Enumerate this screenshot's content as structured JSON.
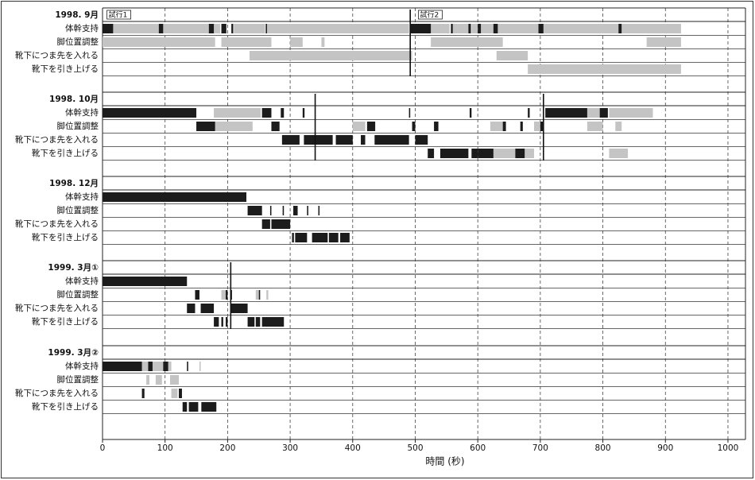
{
  "chart_data": {
    "type": "timeline",
    "xlabel": "時間 (秒)",
    "xlim": [
      0,
      1028
    ],
    "xticks": [
      0,
      100,
      200,
      300,
      400,
      500,
      600,
      700,
      800,
      900,
      1000
    ],
    "grid": true,
    "dark_color": "#1c1c1c",
    "light_color": "#c4c4c4",
    "annotations": [
      {
        "text": "試行1",
        "x": 2
      },
      {
        "text": "試行2",
        "x": 500
      }
    ],
    "panels": [
      {
        "title": "1998. 9月",
        "markers": [
          492
        ],
        "rows": [
          {
            "name": "体幹支持",
            "dark": [
              [
                0,
                17
              ],
              [
                90,
                97
              ],
              [
                170,
                178
              ],
              [
                190,
                198
              ],
              [
                206,
                209
              ],
              [
                261,
                263
              ],
              [
                493,
                525
              ],
              [
                557,
                560
              ],
              [
                585,
                589
              ],
              [
                600,
                605
              ],
              [
                625,
                632
              ],
              [
                697,
                705
              ],
              [
                825,
                830
              ]
            ],
            "light": [
              [
                17,
                90
              ],
              [
                97,
                170
              ],
              [
                178,
                188
              ],
              [
                210,
                260
              ],
              [
                263,
                490
              ],
              [
                525,
                555
              ],
              [
                560,
                585
              ],
              [
                590,
                600
              ],
              [
                605,
                625
              ],
              [
                632,
                697
              ],
              [
                705,
                825
              ],
              [
                830,
                925
              ]
            ]
          },
          {
            "name": "脚位置調整",
            "dark": [],
            "light": [
              [
                0,
                180
              ],
              [
                190,
                270
              ],
              [
                300,
                320
              ],
              [
                350,
                355
              ],
              [
                525,
                640
              ],
              [
                870,
                925
              ]
            ]
          },
          {
            "name": "靴下につま先を入れる",
            "dark": [],
            "light": [
              [
                235,
                495
              ],
              [
                630,
                680
              ]
            ]
          },
          {
            "name": "靴下を引き上げる",
            "dark": [],
            "light": [
              [
                680,
                925
              ]
            ]
          }
        ]
      },
      {
        "title": "1998. 10月",
        "markers": [
          340,
          705
        ],
        "rows": [
          {
            "name": "体幹支持",
            "dark": [
              [
                0,
                150
              ],
              [
                255,
                270
              ],
              [
                285,
                290
              ],
              [
                320,
                323
              ],
              [
                490,
                492
              ],
              [
                587,
                590
              ],
              [
                680,
                683
              ],
              [
                708,
                775
              ],
              [
                795,
                808
              ]
            ],
            "light": [
              [
                178,
                253
              ],
              [
                775,
                795
              ],
              [
                810,
                880
              ]
            ]
          },
          {
            "name": "脚位置調整",
            "dark": [
              [
                150,
                180
              ],
              [
                270,
                283
              ],
              [
                423,
                436
              ],
              [
                495,
                500
              ],
              [
                530,
                537
              ],
              [
                640,
                645
              ],
              [
                668,
                672
              ],
              [
                700,
                705
              ]
            ],
            "light": [
              [
                180,
                240
              ],
              [
                400,
                420
              ],
              [
                620,
                640
              ],
              [
                690,
                700
              ],
              [
                775,
                800
              ],
              [
                820,
                830
              ]
            ]
          },
          {
            "name": "靴下につま先を入れる",
            "dark": [
              [
                287,
                315
              ],
              [
                322,
                368
              ],
              [
                373,
                400
              ],
              [
                413,
                420
              ],
              [
                435,
                490
              ],
              [
                500,
                520
              ]
            ],
            "light": []
          },
          {
            "name": "靴下を引き上げる",
            "dark": [
              [
                520,
                530
              ],
              [
                540,
                585
              ],
              [
                590,
                600
              ],
              [
                600,
                625
              ],
              [
                660,
                675
              ]
            ],
            "light": [
              [
                625,
                660
              ],
              [
                675,
                690
              ],
              [
                810,
                840
              ]
            ]
          }
        ]
      },
      {
        "title": "1998. 12月",
        "markers": [],
        "rows": [
          {
            "name": "体幹支持",
            "dark": [
              [
                0,
                230
              ]
            ],
            "light": []
          },
          {
            "name": "脚位置調整",
            "dark": [
              [
                232,
                255
              ],
              [
                268,
                270
              ],
              [
                288,
                290
              ],
              [
                305,
                312
              ],
              [
                327,
                329
              ],
              [
                345,
                347
              ]
            ],
            "light": []
          },
          {
            "name": "靴下につま先を入れる",
            "dark": [
              [
                255,
                268
              ],
              [
                270,
                300
              ]
            ],
            "light": []
          },
          {
            "name": "靴下を引き上げる",
            "dark": [
              [
                303,
                306
              ],
              [
                308,
                327
              ],
              [
                335,
                360
              ],
              [
                362,
                377
              ],
              [
                380,
                395
              ]
            ],
            "light": []
          }
        ]
      },
      {
        "title": "1999. 3月①",
        "markers": [
          205
        ],
        "rows": [
          {
            "name": "体幹支持",
            "dark": [
              [
                0,
                135
              ]
            ],
            "light": []
          },
          {
            "name": "脚位置調整",
            "dark": [
              [
                148,
                155
              ],
              [
                197,
                200
              ],
              [
                205,
                207
              ],
              [
                250,
                252
              ]
            ],
            "light": [
              [
                190,
                197
              ],
              [
                245,
                250
              ],
              [
                262,
                265
              ]
            ]
          },
          {
            "name": "靴下につま先を入れる",
            "dark": [
              [
                135,
                148
              ],
              [
                157,
                178
              ],
              [
                205,
                232
              ]
            ],
            "light": []
          },
          {
            "name": "靴下を引き上げる",
            "dark": [
              [
                178,
                186
              ],
              [
                190,
                193
              ],
              [
                197,
                200
              ],
              [
                232,
                243
              ],
              [
                245,
                252
              ],
              [
                255,
                290
              ]
            ],
            "light": []
          }
        ]
      },
      {
        "title": "1999. 3月②",
        "markers": [],
        "rows": [
          {
            "name": "体幹支持",
            "dark": [
              [
                0,
                63
              ],
              [
                73,
                80
              ],
              [
                97,
                105
              ],
              [
                135,
                137
              ]
            ],
            "light": [
              [
                63,
                73
              ],
              [
                80,
                97
              ],
              [
                105,
                110
              ],
              [
                155,
                157
              ]
            ]
          },
          {
            "name": "脚位置調整",
            "dark": [],
            "light": [
              [
                70,
                75
              ],
              [
                85,
                95
              ],
              [
                108,
                122
              ]
            ]
          },
          {
            "name": "靴下につま先を入れる",
            "dark": [
              [
                63,
                67
              ],
              [
                122,
                127
              ]
            ],
            "light": [
              [
                110,
                120
              ]
            ]
          },
          {
            "name": "靴下を引き上げる",
            "dark": [
              [
                128,
                135
              ],
              [
                138,
                153
              ],
              [
                158,
                182
              ]
            ],
            "light": []
          }
        ]
      }
    ]
  }
}
